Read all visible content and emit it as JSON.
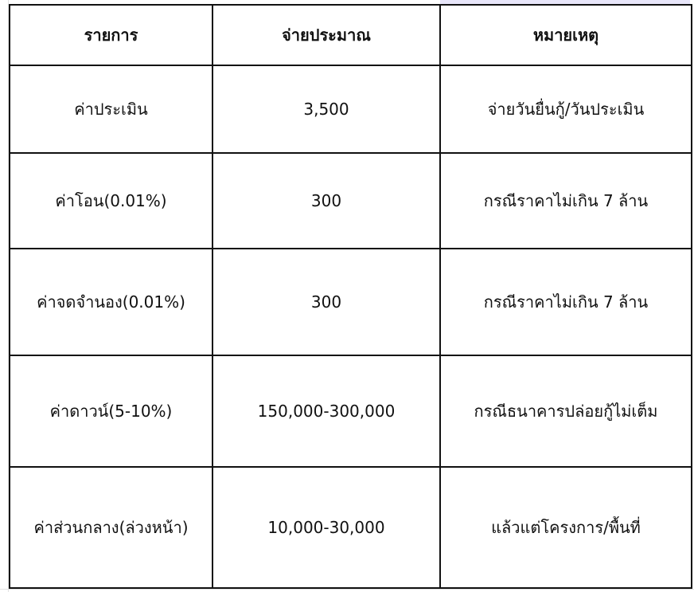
{
  "table": {
    "headers": [
      "รายการ",
      "จ่ายประมาณ",
      "หมายเหตุ"
    ],
    "rows": [
      [
        "ค่าประเมิน",
        "3,500",
        "จ่ายวันยื่นกู้/วันประเมิน"
      ],
      [
        "ค่าโอน(0.01%)",
        "300",
        "กรณีราคาไม่เกิน 7 ล้าน"
      ],
      [
        "ค่าจดจำนอง(0.01%)",
        "300",
        "กรณีราคาไม่เกิน 7 ล้าน"
      ],
      [
        "ค่าดาวน์(5-10%)",
        "150,000-300,000",
        "กรณีธนาคารปล่อยกู้ไม่เต็ม"
      ],
      [
        "ค่าส่วนกลาง(ล่วงหน้า)",
        "10,000-30,000",
        "แล้วแต่โครงการ/พื้นที่"
      ]
    ]
  }
}
